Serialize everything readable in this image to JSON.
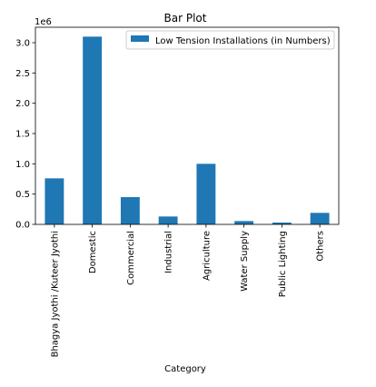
{
  "chart_data": {
    "type": "bar",
    "title": "Bar Plot",
    "xlabel": "Category",
    "ylabel": "",
    "scale_label": "1e6",
    "categories": [
      "Bhagya Jyothi /Kuteer Jyothi",
      "Domestic",
      "Commercial",
      "Industrial",
      "Agriculture",
      "Water Supply",
      "Public Lighting",
      "Others"
    ],
    "series": [
      {
        "name": "Low Tension Installations (in Numbers)",
        "values": [
          760000,
          3100000,
          450000,
          130000,
          1000000,
          55000,
          30000,
          190000
        ],
        "color": "#1f77b4"
      }
    ],
    "ylim": [
      0,
      3255000
    ],
    "yticks": [
      0,
      500000,
      1000000,
      1500000,
      2000000,
      2500000,
      3000000
    ],
    "ytick_labels": [
      "0.0",
      "0.5",
      "1.0",
      "1.5",
      "2.0",
      "2.5",
      "3.0"
    ],
    "legend_position": "top-right",
    "grid": false
  }
}
